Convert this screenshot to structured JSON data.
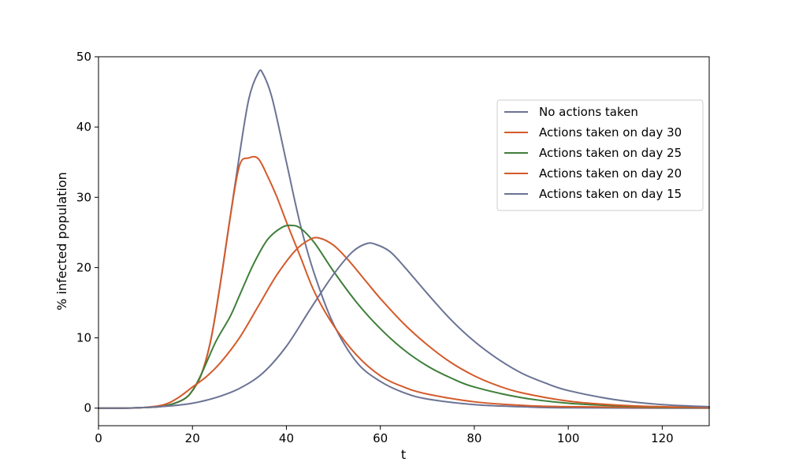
{
  "chart_data": {
    "type": "line",
    "title": "",
    "xlabel": "t",
    "ylabel": "% infected population",
    "xlim": [
      0,
      130
    ],
    "ylim": [
      -2.5,
      50
    ],
    "xticks": [
      0,
      20,
      40,
      60,
      80,
      100,
      120
    ],
    "yticks": [
      0,
      10,
      20,
      30,
      40,
      50
    ],
    "grid": false,
    "legend_position": "upper-right",
    "series": [
      {
        "name": "No actions taken",
        "color": "#6b7394",
        "points": [
          [
            0,
            0
          ],
          [
            5,
            0
          ],
          [
            10,
            0.1
          ],
          [
            14,
            0.3
          ],
          [
            18,
            1.2
          ],
          [
            20,
            2.5
          ],
          [
            22,
            5
          ],
          [
            24,
            10
          ],
          [
            26,
            18
          ],
          [
            28,
            27
          ],
          [
            30,
            36
          ],
          [
            32,
            44
          ],
          [
            34,
            47.7
          ],
          [
            35,
            47.6
          ],
          [
            37,
            44
          ],
          [
            40,
            35
          ],
          [
            43,
            26
          ],
          [
            46,
            19
          ],
          [
            50,
            12
          ],
          [
            55,
            6.5
          ],
          [
            60,
            3.8
          ],
          [
            65,
            2.2
          ],
          [
            70,
            1.3
          ],
          [
            80,
            0.5
          ],
          [
            90,
            0.2
          ],
          [
            100,
            0.05
          ],
          [
            130,
            0
          ]
        ]
      },
      {
        "name": "Actions taken on day 30",
        "color": "#d45a2a",
        "points": [
          [
            0,
            0
          ],
          [
            5,
            0
          ],
          [
            10,
            0.1
          ],
          [
            14,
            0.3
          ],
          [
            18,
            1.2
          ],
          [
            20,
            2.5
          ],
          [
            22,
            5
          ],
          [
            24,
            10
          ],
          [
            26,
            18
          ],
          [
            28,
            27
          ],
          [
            30,
            34.5
          ],
          [
            32,
            35.6
          ],
          [
            34,
            35.5
          ],
          [
            36,
            33
          ],
          [
            38,
            30
          ],
          [
            40,
            26.5
          ],
          [
            43,
            21.5
          ],
          [
            46,
            16.5
          ],
          [
            50,
            11.8
          ],
          [
            55,
            7.5
          ],
          [
            60,
            4.6
          ],
          [
            65,
            3
          ],
          [
            70,
            2
          ],
          [
            80,
            0.9
          ],
          [
            90,
            0.4
          ],
          [
            100,
            0.2
          ],
          [
            130,
            0.05
          ]
        ]
      },
      {
        "name": "Actions taken on day 25",
        "color": "#3f7f3a",
        "points": [
          [
            0,
            0
          ],
          [
            5,
            0
          ],
          [
            10,
            0.1
          ],
          [
            14,
            0.3
          ],
          [
            18,
            1.2
          ],
          [
            20,
            2.5
          ],
          [
            22,
            5
          ],
          [
            25,
            9.5
          ],
          [
            28,
            13
          ],
          [
            30,
            16
          ],
          [
            33,
            20.5
          ],
          [
            36,
            24
          ],
          [
            39,
            25.7
          ],
          [
            41,
            26
          ],
          [
            43,
            25.6
          ],
          [
            46,
            23.5
          ],
          [
            50,
            19.5
          ],
          [
            55,
            15
          ],
          [
            60,
            11.3
          ],
          [
            65,
            8.3
          ],
          [
            70,
            6
          ],
          [
            75,
            4.3
          ],
          [
            80,
            3
          ],
          [
            90,
            1.5
          ],
          [
            100,
            0.7
          ],
          [
            110,
            0.35
          ],
          [
            120,
            0.15
          ],
          [
            130,
            0.05
          ]
        ]
      },
      {
        "name": "Actions taken on day 20",
        "color": "#d45a2a",
        "points": [
          [
            0,
            0
          ],
          [
            5,
            0
          ],
          [
            10,
            0.1
          ],
          [
            14,
            0.5
          ],
          [
            17,
            1.5
          ],
          [
            20,
            3
          ],
          [
            23,
            4.5
          ],
          [
            26,
            6.5
          ],
          [
            30,
            10
          ],
          [
            34,
            14.5
          ],
          [
            38,
            19
          ],
          [
            42,
            22.5
          ],
          [
            45,
            24
          ],
          [
            47,
            24.2
          ],
          [
            50,
            23.2
          ],
          [
            53,
            21.2
          ],
          [
            57,
            18
          ],
          [
            60,
            15.6
          ],
          [
            65,
            12
          ],
          [
            70,
            9
          ],
          [
            75,
            6.5
          ],
          [
            80,
            4.6
          ],
          [
            85,
            3.2
          ],
          [
            90,
            2.2
          ],
          [
            100,
            1
          ],
          [
            110,
            0.45
          ],
          [
            120,
            0.2
          ],
          [
            130,
            0.08
          ]
        ]
      },
      {
        "name": "Actions taken on day 15",
        "color": "#6b7394",
        "points": [
          [
            0,
            0
          ],
          [
            5,
            0
          ],
          [
            10,
            0.1
          ],
          [
            15,
            0.3
          ],
          [
            20,
            0.7
          ],
          [
            25,
            1.5
          ],
          [
            30,
            2.8
          ],
          [
            35,
            5
          ],
          [
            40,
            8.8
          ],
          [
            45,
            14
          ],
          [
            50,
            19
          ],
          [
            54,
            22.2
          ],
          [
            57,
            23.4
          ],
          [
            59,
            23.3
          ],
          [
            62,
            22.3
          ],
          [
            65,
            20.2
          ],
          [
            70,
            16.3
          ],
          [
            75,
            12.6
          ],
          [
            80,
            9.5
          ],
          [
            85,
            7
          ],
          [
            90,
            5
          ],
          [
            95,
            3.6
          ],
          [
            100,
            2.5
          ],
          [
            110,
            1.2
          ],
          [
            120,
            0.5
          ],
          [
            130,
            0.2
          ]
        ]
      }
    ]
  }
}
